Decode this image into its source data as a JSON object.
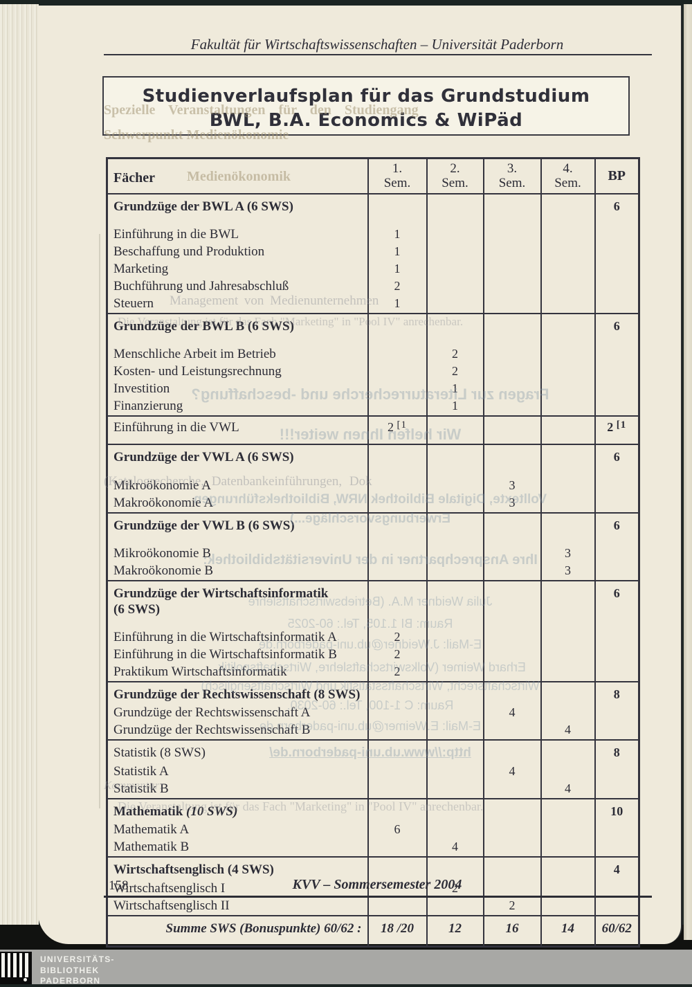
{
  "header": {
    "text": "Fakultät für Wirtschaftswissenschaften – Universität Paderborn"
  },
  "title_box": {
    "line1": "Studienverlaufsplan für das Grundstudium",
    "line2": "BWL, B.A. Economics & WiPäd"
  },
  "table": {
    "col_faecher": "Fächer",
    "col_bp": "BP",
    "sem_headers": [
      {
        "l1": "1.",
        "l2": "Sem."
      },
      {
        "l1": "2.",
        "l2": "Sem."
      },
      {
        "l1": "3.",
        "l2": "Sem."
      },
      {
        "l1": "4.",
        "l2": "Sem."
      }
    ],
    "rows": [
      {
        "t": "section",
        "sp": true,
        "label": "Grundzüge der BWL A (6 SWS)",
        "bp": "6"
      },
      {
        "t": "course",
        "label": "Einführung in die BWL",
        "s1": "1"
      },
      {
        "t": "course",
        "label": "Beschaffung und Produktion",
        "s1": "1"
      },
      {
        "t": "course",
        "label": "Marketing",
        "s1": "1"
      },
      {
        "t": "course",
        "label": "Buchführung und Jahresabschluß",
        "s1": "2"
      },
      {
        "t": "course",
        "label": "Steuern",
        "s1": "1"
      },
      {
        "t": "section",
        "sp": true,
        "label": "Grundzüge der BWL B (6 SWS)",
        "bp": "6"
      },
      {
        "t": "course",
        "label": "Menschliche Arbeit im Betrieb",
        "s2": "2"
      },
      {
        "t": "course",
        "label": "Kosten- und Leistungsrechnung",
        "s2": "2"
      },
      {
        "t": "course",
        "label": "Investition",
        "s2": "1"
      },
      {
        "t": "course",
        "label": "Finanzierung",
        "s2": "1"
      },
      {
        "t": "single",
        "label": "Einführung in die VWL",
        "s1": "2 [1",
        "bp": "2 [1"
      },
      {
        "t": "section",
        "sp": true,
        "label": "Grundzüge der VWL A (6 SWS)",
        "bp": "6"
      },
      {
        "t": "course",
        "label": "Mikroökonomie A",
        "s3": "3"
      },
      {
        "t": "course",
        "label": "Makroökonomie A",
        "s3": "3"
      },
      {
        "t": "section",
        "sp": true,
        "label": "Grundzüge der VWL B (6 SWS)",
        "bp": "6"
      },
      {
        "t": "course",
        "label": "Mikroökonomie B",
        "s4": "3"
      },
      {
        "t": "course",
        "label": "Makroökonomie B",
        "s4": "3"
      },
      {
        "t": "section",
        "sp": true,
        "label": "Grundzüge der Wirtschaftsinformatik",
        "label2": "(6 SWS)",
        "bp": "6"
      },
      {
        "t": "course",
        "label": "Einführung in die Wirtschaftsinformatik A",
        "s1": "2"
      },
      {
        "t": "course",
        "label": "Einführung in die Wirtschaftsinformatik B",
        "s1": "2"
      },
      {
        "t": "course",
        "label": "Praktikum Wirtschaftsinformatik",
        "s1": "2"
      },
      {
        "t": "section",
        "label": "Grundzüge der Rechtswissenschaft (8 SWS)",
        "bp": "8"
      },
      {
        "t": "course",
        "label": "Grundzüge der Rechtswissenschaft A",
        "s3": "4"
      },
      {
        "t": "course",
        "label": "Grundzüge der Rechtswissenschaft B",
        "s4": "4"
      },
      {
        "t": "section",
        "plain": true,
        "label": "Statistik (8 SWS)",
        "bp": "8"
      },
      {
        "t": "course",
        "label": "Statistik A",
        "s3": "4"
      },
      {
        "t": "course",
        "label": "Statistik B",
        "s4": "4"
      },
      {
        "t": "section",
        "label": "Mathematik",
        "label_it": "(10 SWS)",
        "bp": "10"
      },
      {
        "t": "course",
        "label": "Mathematik A",
        "s1": "6"
      },
      {
        "t": "course",
        "label": "Mathematik B",
        "s2": "4"
      },
      {
        "t": "section",
        "label": "Wirtschaftsenglisch (4 SWS)",
        "bp": "4"
      },
      {
        "t": "course",
        "label": "Wirtschaftsenglisch I",
        "s2": "2"
      },
      {
        "t": "course",
        "label": "Wirtschaftsenglisch II",
        "s3": "2"
      },
      {
        "t": "summary",
        "label": "Summe SWS (Bonuspunkte) 60/62 :",
        "s1": "18 /20",
        "s2": "12",
        "s3": "16",
        "s4": "14",
        "bp": "60/62"
      }
    ]
  },
  "footer": {
    "page_number": "158",
    "text": "KVV – Sommersemester 2004"
  },
  "logo": {
    "line1": "UNIVERSITÄTS-",
    "line2": "BIBLIOTHEK",
    "line3": "PADERBORN"
  },
  "ghosts": [
    {
      "text": "Spezielle Veranstaltungen für den Studiengang"
    },
    {
      "text": "Schwerpunkt Medienökonomie"
    },
    {
      "text": "Medienökonomik"
    },
    {
      "text": "Management von Medienunternehmen"
    },
    {
      "text": "Die Veranstaltung ist für das Fach \"Marketing\" in \"Pool IV\" anrechenbar."
    },
    {
      "text": "Fragen zur Literaturrecherche und -beschaffung?"
    },
    {
      "text": "Wir helfen Ihnen weiter!!!"
    },
    {
      "text": "(Katalogrecherche, Datenbankeinführungen, Dok"
    },
    {
      "text": "Volltexte, Digitale Bibliothek NRW, Bibliotheksführungen"
    },
    {
      "text": "Erwerbungsvorschläge...)"
    },
    {
      "text": "Ihre Ansprechpartner in der Universitätsbibliothek:"
    },
    {
      "text": "Julia Weidner M.A. (Betriebswirtschaftslehre"
    },
    {
      "text": "Raum: BI 1.105, Tel.: 60-2025"
    },
    {
      "text": "E-Mail: J.Weidner@ub.uni-paderborn.de"
    },
    {
      "text": "Erhard Weimer (Volkswirtschaftslehre, Wirtschaftspolitik,"
    },
    {
      "text": "Wirtschaftsrecht, Wirtschaftsstatistik und Wirtschaftsenglisch)"
    },
    {
      "text": "Raum: C 1-100, Tel.: 60-2030."
    },
    {
      "text": "E-Mail: E.Weimer@ub.uni-paderborn.de"
    },
    {
      "text": "http://www.ub.uni-paderborn.de/"
    },
    {
      "text": "Kommentar:"
    },
    {
      "text": "Die Veranstaltung ist für das Fach \"Marketing\" in \"Pool IV\" anrechenbar."
    }
  ],
  "colors": {
    "paper": "#efeadb",
    "ink": "#2c2c36",
    "table_line": "#34343e",
    "scanner_band": "#a8a8a5"
  }
}
